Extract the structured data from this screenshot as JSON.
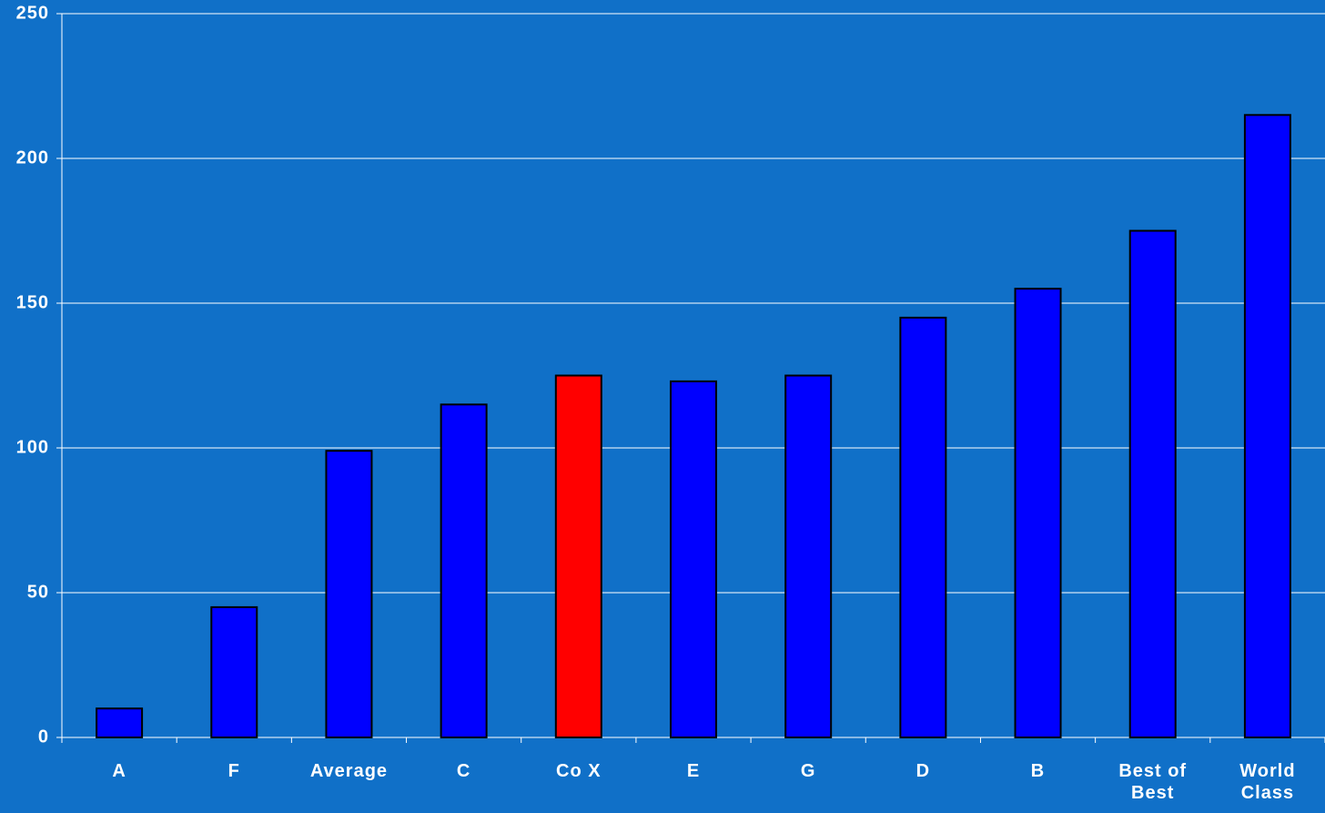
{
  "chart_data": {
    "type": "bar",
    "categories": [
      "A",
      "F",
      "Average",
      "C",
      "Co X",
      "E",
      "G",
      "D",
      "B",
      "Best of Best",
      "World Class"
    ],
    "values": [
      10,
      45,
      99,
      115,
      125,
      123,
      125,
      145,
      155,
      175,
      215
    ],
    "colors": [
      "#0000ff",
      "#0000ff",
      "#0000ff",
      "#0000ff",
      "#ff0000",
      "#0000ff",
      "#0000ff",
      "#0000ff",
      "#0000ff",
      "#0000ff",
      "#0000ff"
    ],
    "ylim": [
      0,
      250
    ],
    "yticks": [
      0,
      50,
      100,
      150,
      200,
      250
    ],
    "grid": true
  }
}
